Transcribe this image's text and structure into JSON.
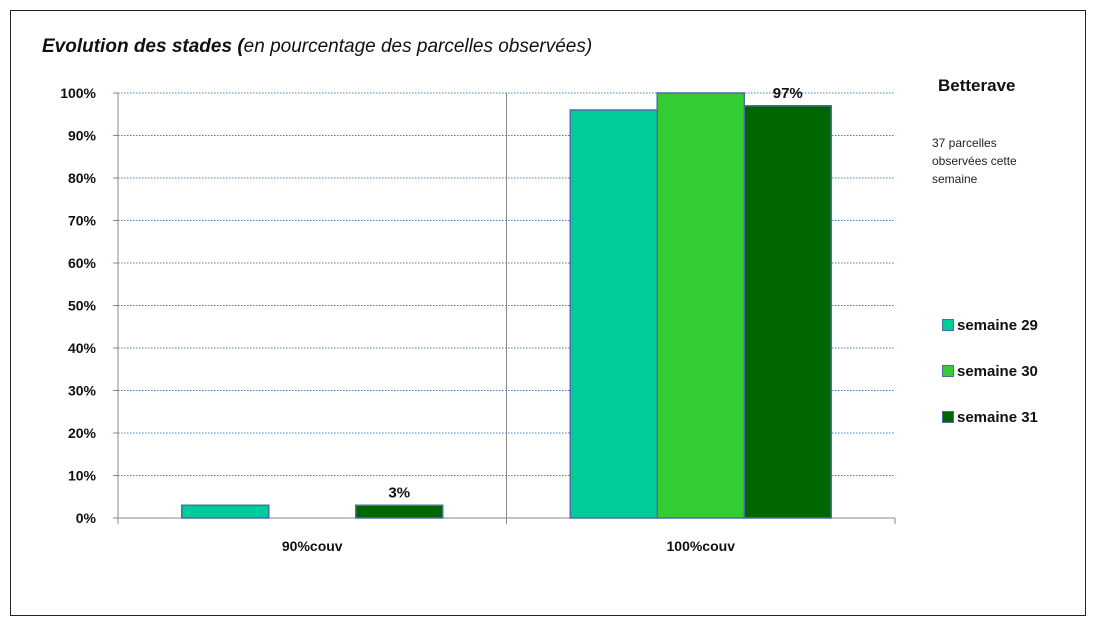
{
  "title_bold": "Evolution des stades (",
  "title_rest": "en pourcentage des parcelles observées)",
  "side_title": "Betterave",
  "side_note": "37 parcelles observées cette semaine",
  "colors": {
    "semaine 29": "#00cc99",
    "semaine 30": "#33cc33",
    "semaine 31": "#006600",
    "grid": "#4a7fc1",
    "axis": "#888888",
    "bar_border": "#4a6fa5"
  },
  "chart_data": {
    "type": "bar",
    "title": "Evolution des stades (en pourcentage des parcelles observées)",
    "categories": [
      "90%couv",
      "100%couv"
    ],
    "series": [
      {
        "name": "semaine 29",
        "values": [
          3,
          96
        ]
      },
      {
        "name": "semaine 30",
        "values": [
          0,
          100
        ]
      },
      {
        "name": "semaine 31",
        "values": [
          3,
          97
        ]
      }
    ],
    "data_labels": [
      {
        "series": "semaine 31",
        "category": "90%couv",
        "text": "3%"
      },
      {
        "series": "semaine 31",
        "category": "100%couv",
        "text": "97%"
      }
    ],
    "yticks": [
      "0%",
      "10%",
      "20%",
      "30%",
      "40%",
      "50%",
      "60%",
      "70%",
      "80%",
      "90%",
      "100%"
    ],
    "ylim": [
      0,
      100
    ],
    "grid": true,
    "legend_position": "right"
  }
}
